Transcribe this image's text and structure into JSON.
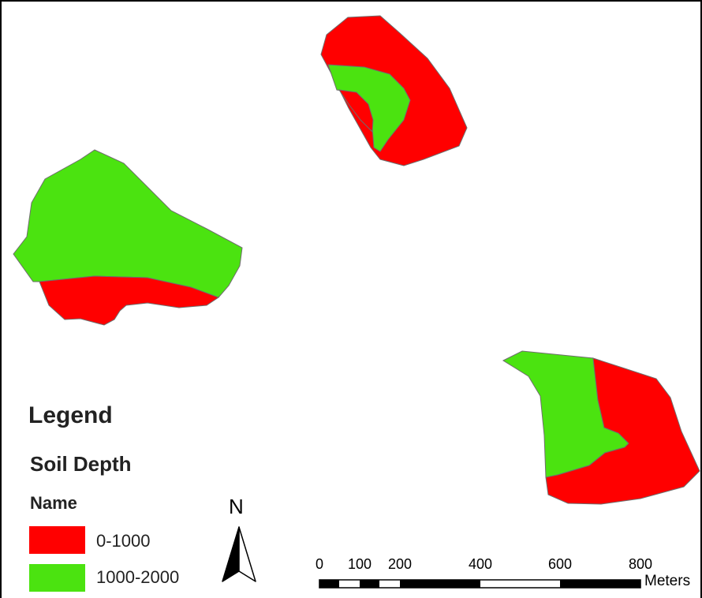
{
  "legend": {
    "title": "Legend",
    "layer_title": "Soil Depth",
    "field_title": "Name",
    "classes": [
      {
        "label": "0-1000",
        "color": "#ff0000"
      },
      {
        "label": "1000-2000",
        "color": "#4be310"
      }
    ]
  },
  "north_arrow": {
    "letter": "N"
  },
  "scale_bar": {
    "ticks": [
      "0",
      "100",
      "200",
      "400",
      "600",
      "800"
    ],
    "unit": "Meters"
  },
  "colors": {
    "shallow": "#ff0000",
    "deep": "#4be310",
    "outline": "#6e6e6e",
    "background": "#ffffff"
  }
}
